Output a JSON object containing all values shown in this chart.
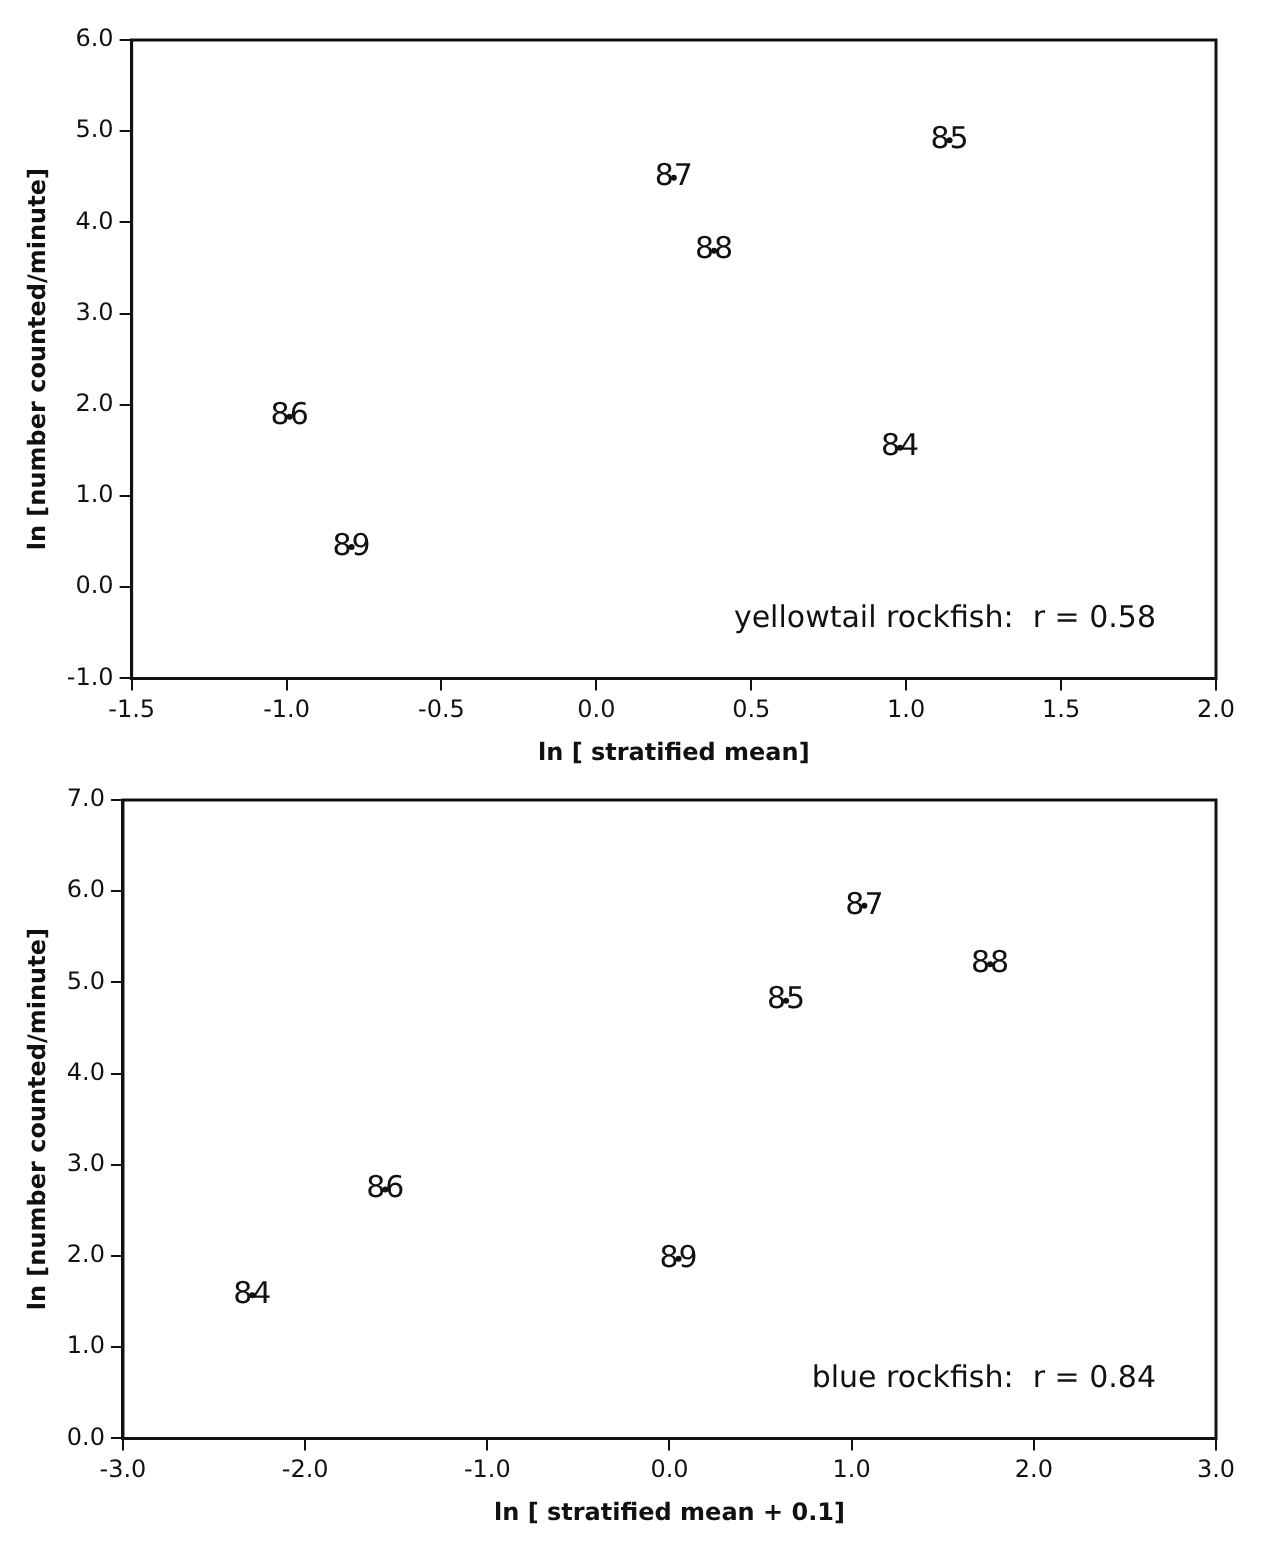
{
  "chart_data": [
    {
      "type": "scatter",
      "xlabel": "ln [ stratified mean]",
      "ylabel": "ln [number counted/minute]",
      "grid": false,
      "legend": false,
      "series": [
        {
          "name": "84",
          "color": "#111111",
          "x": [
            0.98
          ],
          "values": [
            1.53
          ]
        },
        {
          "name": "85",
          "color": "#111111",
          "x": [
            1.14
          ],
          "values": [
            4.9
          ]
        },
        {
          "name": "86",
          "color": "#111111",
          "x": [
            -0.99
          ],
          "values": [
            1.87
          ]
        },
        {
          "name": "87",
          "color": "#111111",
          "x": [
            0.25
          ],
          "values": [
            4.49
          ]
        },
        {
          "name": "88",
          "color": "#111111",
          "x": [
            0.38
          ],
          "values": [
            3.69
          ]
        },
        {
          "name": "89",
          "color": "#111111",
          "x": [
            -0.79
          ],
          "values": [
            0.44
          ]
        }
      ],
      "xlim": [
        -1.5,
        2.0
      ],
      "xticks": [
        {
          "value": -1.5,
          "label": "-1.5"
        },
        {
          "value": -1,
          "label": "-1.0"
        },
        {
          "value": -0.5,
          "label": "-0.5"
        },
        {
          "value": 0,
          "label": "0.0"
        },
        {
          "value": 0.5,
          "label": "0.5"
        },
        {
          "value": 1,
          "label": "1.0"
        },
        {
          "value": 1.5,
          "label": "1.5"
        },
        {
          "value": 2,
          "label": "2.0"
        }
      ],
      "ylim": [
        -1,
        6
      ],
      "yticks": [
        {
          "value": -1,
          "label": "-1.0"
        },
        {
          "value": 0,
          "label": "0.0"
        },
        {
          "value": 1,
          "label": "1.0"
        },
        {
          "value": 2,
          "label": "2.0"
        },
        {
          "value": 3,
          "label": "3.0"
        },
        {
          "value": 4,
          "label": "4.0"
        },
        {
          "value": 5,
          "label": "5.0"
        },
        {
          "value": 6,
          "label": "6.0"
        }
      ],
      "annotations": [
        "yellowtail rockfish:  r = 0.58"
      ]
    },
    {
      "type": "scatter",
      "xlabel": "ln [ stratified mean + 0.1]",
      "ylabel": "ln [number counted/minute]",
      "grid": false,
      "legend": false,
      "series": [
        {
          "name": "84",
          "color": "#111111",
          "x": [
            -2.29
          ],
          "values": [
            1.57
          ]
        },
        {
          "name": "85",
          "color": "#111111",
          "x": [
            0.64
          ],
          "values": [
            4.8
          ]
        },
        {
          "name": "86",
          "color": "#111111",
          "x": [
            -1.56
          ],
          "values": [
            2.73
          ]
        },
        {
          "name": "87",
          "color": "#111111",
          "x": [
            1.07
          ],
          "values": [
            5.84
          ]
        },
        {
          "name": "88",
          "color": "#111111",
          "x": [
            1.76
          ],
          "values": [
            5.2
          ]
        },
        {
          "name": "89",
          "color": "#111111",
          "x": [
            0.05
          ],
          "values": [
            1.97
          ]
        }
      ],
      "xlim": [
        -3,
        3
      ],
      "xticks": [
        {
          "value": -3,
          "label": "-3.0"
        },
        {
          "value": -2,
          "label": "-2.0"
        },
        {
          "value": -1,
          "label": "-1.0"
        },
        {
          "value": 0,
          "label": "0.0"
        },
        {
          "value": 1,
          "label": "1.0"
        },
        {
          "value": 2,
          "label": "2.0"
        },
        {
          "value": 3,
          "label": "3.0"
        }
      ],
      "ylim": [
        0,
        7
      ],
      "yticks": [
        {
          "value": 0,
          "label": "0.0"
        },
        {
          "value": 1,
          "label": "1.0"
        },
        {
          "value": 2,
          "label": "2.0"
        },
        {
          "value": 3,
          "label": "3.0"
        },
        {
          "value": 4,
          "label": "4.0"
        },
        {
          "value": 5,
          "label": "5.0"
        },
        {
          "value": 6,
          "label": "6.0"
        },
        {
          "value": 7,
          "label": "7.0"
        }
      ],
      "annotations": [
        "blue rockfish:  r = 0.84"
      ]
    }
  ]
}
